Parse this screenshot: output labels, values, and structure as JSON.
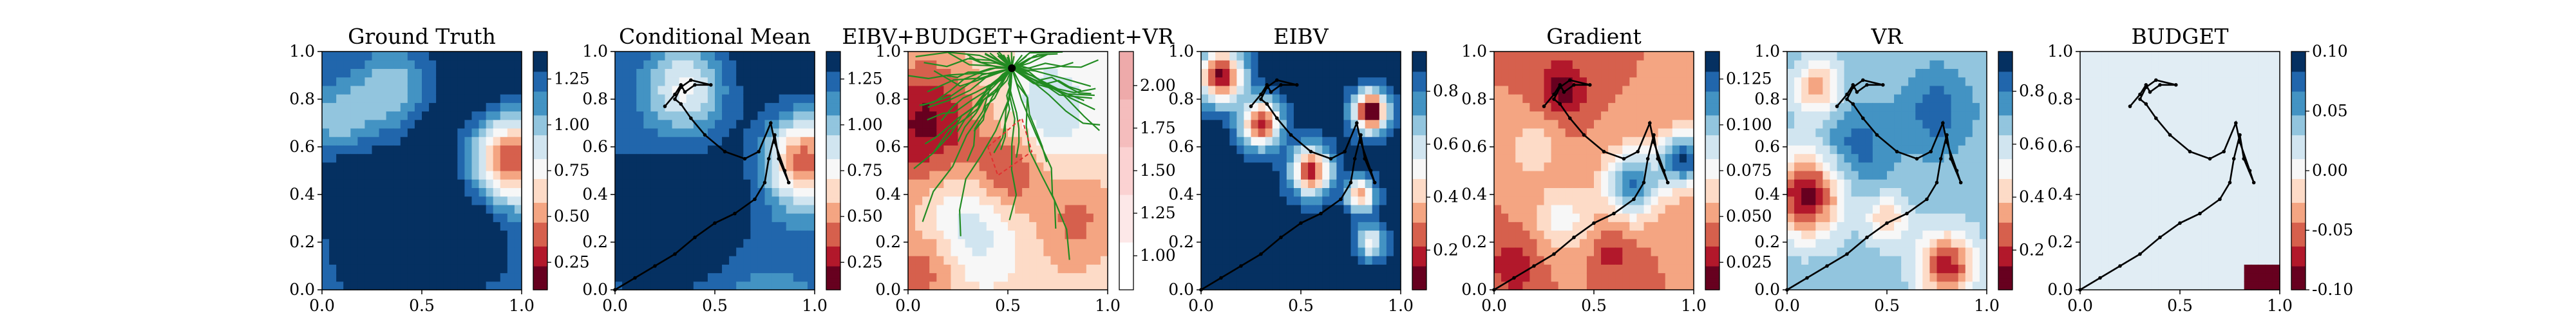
{
  "figure": {
    "background": "#ffffff"
  },
  "colormap": {
    "name": "RdBu",
    "levels": [
      "#67001f",
      "#b2182b",
      "#d6604d",
      "#f4a582",
      "#fddbc7",
      "#f7f7f7",
      "#d1e5f0",
      "#92c5de",
      "#4393c3",
      "#2166ac",
      "#053061"
    ]
  },
  "chart_data": [
    {
      "type": "heatmap",
      "title": "Ground Truth",
      "xlim": [
        0,
        1
      ],
      "ylim": [
        0,
        1
      ],
      "xticks": [
        "0.0",
        "0.5",
        "1.0"
      ],
      "yticks": [
        "0.0",
        "0.2",
        "0.4",
        "0.6",
        "0.8",
        "1.0"
      ],
      "colorbar": {
        "range": [
          0.1,
          1.4
        ],
        "ticks": [
          "0.25",
          "0.50",
          "0.75",
          "1.00",
          "1.25"
        ]
      },
      "field": {
        "base": 0.95,
        "gx": 0.1,
        "gy": 0.2,
        "blobs": [
          {
            "x": 0.95,
            "y": 0.55,
            "r": 0.13,
            "a": -0.8
          },
          {
            "x": 0.35,
            "y": 0.85,
            "r": 0.12,
            "a": -0.3
          },
          {
            "x": 0.1,
            "y": 0.72,
            "r": 0.1,
            "a": -0.25
          },
          {
            "x": 0.35,
            "y": 0.1,
            "r": 0.2,
            "a": 0.4
          },
          {
            "x": 0.7,
            "y": 0.2,
            "r": 0.15,
            "a": 0.3
          },
          {
            "x": 0.15,
            "y": 0.4,
            "r": 0.15,
            "a": 0.25
          },
          {
            "x": 0.55,
            "y": 0.6,
            "r": 0.12,
            "a": 0.15
          },
          {
            "x": 0.8,
            "y": 0.85,
            "r": 0.1,
            "a": 0.1
          }
        ]
      },
      "path": false
    },
    {
      "type": "heatmap",
      "title": "Conditional Mean",
      "xlim": [
        0,
        1
      ],
      "ylim": [
        0,
        1
      ],
      "xticks": [
        "0.0",
        "0.5",
        "1.0"
      ],
      "yticks": [
        "0.0",
        "0.2",
        "0.4",
        "0.6",
        "0.8",
        "1.0"
      ],
      "colorbar": {
        "range": [
          0.1,
          1.4
        ],
        "ticks": [
          "0.25",
          "0.50",
          "0.75",
          "1.00",
          "1.25"
        ]
      },
      "field": {
        "base": 0.95,
        "gx": 0.15,
        "gy": 0.25,
        "blobs": [
          {
            "x": 0.95,
            "y": 0.55,
            "r": 0.13,
            "a": -0.8
          },
          {
            "x": 0.35,
            "y": 0.85,
            "r": 0.14,
            "a": -0.45
          },
          {
            "x": 0.15,
            "y": 0.2,
            "r": 0.25,
            "a": 0.35
          },
          {
            "x": 0.45,
            "y": 0.3,
            "r": 0.12,
            "a": 0.3
          },
          {
            "x": 0.6,
            "y": 0.55,
            "r": 0.15,
            "a": 0.05
          }
        ]
      },
      "path": true
    },
    {
      "type": "heatmap",
      "title": "EIBV+BUDGET+Gradient+VR",
      "xlim": [
        0,
        1
      ],
      "ylim": [
        0,
        1
      ],
      "xticks": [
        "0.0",
        "0.5",
        "1.0"
      ],
      "yticks": [
        "0.0",
        "0.2",
        "0.4",
        "0.6",
        "0.8",
        "1.0"
      ],
      "colorbar": {
        "range": [
          0.8,
          2.2
        ],
        "ticks": [
          "1.00",
          "1.25",
          "1.50",
          "1.75",
          "2.00"
        ],
        "cmap": "pale"
      },
      "field": {
        "base": 0.45,
        "gx": 0.1,
        "gy": 0.05,
        "blobs": [
          {
            "x": 0.1,
            "y": 0.7,
            "r": 0.18,
            "a": -0.35
          },
          {
            "x": 0.5,
            "y": 0.5,
            "r": 0.12,
            "a": -0.3
          },
          {
            "x": 0.85,
            "y": 0.3,
            "r": 0.15,
            "a": -0.2
          },
          {
            "x": 0.3,
            "y": 0.25,
            "r": 0.18,
            "a": 0.25
          },
          {
            "x": 0.7,
            "y": 0.75,
            "r": 0.15,
            "a": 0.2
          },
          {
            "x": 0.1,
            "y": 0.1,
            "r": 0.12,
            "a": -0.2
          }
        ]
      },
      "tree": true,
      "path": false
    },
    {
      "type": "heatmap",
      "title": "EIBV",
      "xlim": [
        0,
        1
      ],
      "ylim": [
        0,
        1
      ],
      "xticks": [
        "0.0",
        "0.5",
        "1.0"
      ],
      "yticks": [
        "0.0",
        "0.2",
        "0.4",
        "0.6",
        "0.8",
        "1.0"
      ],
      "colorbar": {
        "range": [
          0.05,
          0.95
        ],
        "ticks": [
          "0.2",
          "0.4",
          "0.6",
          "0.8"
        ]
      },
      "field": {
        "base": 1.05,
        "gx": 0,
        "gy": 0,
        "blobs": [
          {
            "x": 0.1,
            "y": 0.9,
            "r": 0.08,
            "a": -1.0
          },
          {
            "x": 0.3,
            "y": 0.7,
            "r": 0.07,
            "a": -0.9
          },
          {
            "x": 0.55,
            "y": 0.5,
            "r": 0.07,
            "a": -0.9
          },
          {
            "x": 0.85,
            "y": 0.75,
            "r": 0.06,
            "a": -1.1
          },
          {
            "x": 0.8,
            "y": 0.4,
            "r": 0.05,
            "a": -0.7
          },
          {
            "x": 0.85,
            "y": 0.2,
            "r": 0.05,
            "a": -0.5
          }
        ]
      },
      "path": true
    },
    {
      "type": "heatmap",
      "title": "Gradient",
      "xlim": [
        0,
        1
      ],
      "ylim": [
        0,
        1
      ],
      "xticks": [
        "0.0",
        "0.5",
        "1.0"
      ],
      "yticks": [
        "0.0",
        "0.2",
        "0.4",
        "0.6",
        "0.8",
        "1.0"
      ],
      "colorbar": {
        "range": [
          0.01,
          0.14
        ],
        "ticks": [
          "0.025",
          "0.050",
          "0.075",
          "0.100",
          "0.125"
        ]
      },
      "field": {
        "base": 0.3,
        "gx": 0,
        "gy": 0,
        "blobs": [
          {
            "x": 0.95,
            "y": 0.55,
            "r": 0.08,
            "a": 0.7
          },
          {
            "x": 0.7,
            "y": 0.45,
            "r": 0.1,
            "a": 0.6
          },
          {
            "x": 0.35,
            "y": 0.3,
            "r": 0.1,
            "a": 0.25
          },
          {
            "x": 0.2,
            "y": 0.6,
            "r": 0.08,
            "a": 0.2
          },
          {
            "x": 0.35,
            "y": 0.85,
            "r": 0.08,
            "a": -0.25
          },
          {
            "x": 0.1,
            "y": 0.1,
            "r": 0.08,
            "a": -0.2
          },
          {
            "x": 0.6,
            "y": 0.15,
            "r": 0.07,
            "a": -0.15
          }
        ]
      },
      "path": true
    },
    {
      "type": "heatmap",
      "title": "VR",
      "xlim": [
        0,
        1
      ],
      "ylim": [
        0,
        1
      ],
      "xticks": [
        "0.0",
        "0.5",
        "1.0"
      ],
      "yticks": [
        "0.0",
        "0.2",
        "0.4",
        "0.6",
        "0.8",
        "1.0"
      ],
      "colorbar": {
        "range": [
          0.05,
          0.95
        ],
        "ticks": [
          "0.2",
          "0.4",
          "0.6",
          "0.8"
        ]
      },
      "field": {
        "base": 0.75,
        "gx": 0,
        "gy": 0,
        "blobs": [
          {
            "x": 0.1,
            "y": 0.4,
            "r": 0.12,
            "a": -0.7
          },
          {
            "x": 0.8,
            "y": 0.1,
            "r": 0.1,
            "a": -0.6
          },
          {
            "x": 0.15,
            "y": 0.85,
            "r": 0.08,
            "a": -0.4
          },
          {
            "x": 0.5,
            "y": 0.3,
            "r": 0.07,
            "a": -0.35
          },
          {
            "x": 0.75,
            "y": 0.75,
            "r": 0.12,
            "a": 0.2
          },
          {
            "x": 0.35,
            "y": 0.6,
            "r": 0.12,
            "a": 0.2
          }
        ]
      },
      "path": true
    },
    {
      "type": "heatmap",
      "title": "BUDGET",
      "xlim": [
        0,
        1
      ],
      "ylim": [
        0,
        1
      ],
      "xticks": [
        "0.0",
        "0.5",
        "1.0"
      ],
      "yticks": [
        "0.0",
        "0.2",
        "0.4",
        "0.6",
        "0.8",
        "1.0"
      ],
      "colorbar": {
        "range": [
          -0.1,
          0.1
        ],
        "ticks": [
          "-0.10",
          "-0.05",
          "0.00",
          "0.05",
          "0.10"
        ],
        "cmap": "budget"
      },
      "field": {
        "base": 0.0,
        "gx": 0,
        "gy": 0,
        "blobs": []
      },
      "path": true
    }
  ],
  "trajectory": [
    [
      0.25,
      0.77
    ],
    [
      0.3,
      0.82
    ],
    [
      0.33,
      0.86
    ],
    [
      0.35,
      0.83
    ],
    [
      0.4,
      0.86
    ],
    [
      0.48,
      0.86
    ],
    [
      0.38,
      0.88
    ],
    [
      0.33,
      0.85
    ],
    [
      0.3,
      0.8
    ],
    [
      0.33,
      0.78
    ],
    [
      0.38,
      0.72
    ],
    [
      0.45,
      0.65
    ],
    [
      0.55,
      0.58
    ],
    [
      0.65,
      0.55
    ],
    [
      0.72,
      0.58
    ],
    [
      0.78,
      0.7
    ],
    [
      0.8,
      0.62
    ],
    [
      0.85,
      0.5
    ],
    [
      0.87,
      0.45
    ],
    [
      0.82,
      0.55
    ],
    [
      0.8,
      0.65
    ],
    [
      0.77,
      0.55
    ],
    [
      0.75,
      0.45
    ],
    [
      0.7,
      0.38
    ],
    [
      0.6,
      0.32
    ],
    [
      0.5,
      0.28
    ],
    [
      0.4,
      0.22
    ],
    [
      0.3,
      0.15
    ],
    [
      0.2,
      0.1
    ],
    [
      0.1,
      0.05
    ],
    [
      0.0,
      0.0
    ]
  ]
}
